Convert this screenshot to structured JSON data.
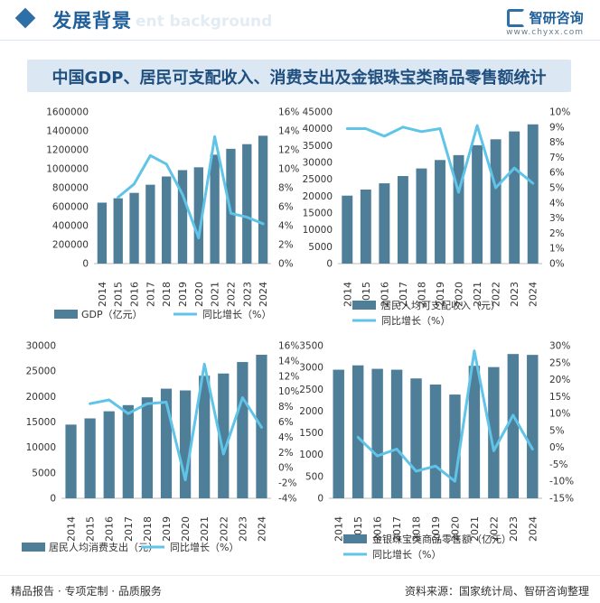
{
  "header": {
    "title": "发展背景",
    "ghost_text": "ent background",
    "logo_name": "智研咨询",
    "logo_url": "www.chyxx.com"
  },
  "main_title": "中国GDP、居民可支配收入、消费支出及金银珠宝类商品零售额统计",
  "footer": {
    "left": "精品报告 · 专项定制 · 品质服务",
    "right": "资料来源：国家统计局、智研咨询整理"
  },
  "colors": {
    "bar": "#4f7f98",
    "line": "#5fc4e8",
    "accent": "#1f5f9a"
  },
  "chart_data": [
    {
      "type": "bar",
      "categories": [
        "2014",
        "2015",
        "2016",
        "2017",
        "2018",
        "2019",
        "2020",
        "2021",
        "2022",
        "2023",
        "2024"
      ],
      "series": [
        {
          "name": "GDP（亿元）",
          "kind": "bar",
          "axis": "left",
          "values": [
            643000,
            689000,
            746000,
            832000,
            919000,
            986000,
            1016000,
            1149000,
            1211000,
            1260000,
            1349000
          ]
        },
        {
          "name": "同比增长（%）",
          "kind": "line",
          "axis": "right",
          "start_index": 1,
          "values": [
            null,
            7.0,
            8.4,
            11.4,
            10.5,
            7.3,
            2.7,
            13.4,
            5.3,
            4.9,
            4.2
          ]
        }
      ],
      "yticks_left": [
        "0",
        "200000",
        "400000",
        "600000",
        "800000",
        "1000000",
        "1200000",
        "1400000",
        "1600000"
      ],
      "yticks_right": [
        "0%",
        "2%",
        "4%",
        "6%",
        "8%",
        "10%",
        "12%",
        "14%",
        "16%"
      ],
      "ylim_left": [
        0,
        1600000
      ],
      "ylim_right": [
        0,
        16
      ]
    },
    {
      "type": "bar",
      "categories": [
        "2014",
        "2015",
        "2016",
        "2017",
        "2018",
        "2019",
        "2020",
        "2021",
        "2022",
        "2023",
        "2024"
      ],
      "series": [
        {
          "name": "居民人均可支配收入（元）",
          "kind": "bar",
          "axis": "left",
          "values": [
            20167,
            21966,
            23821,
            25974,
            28228,
            30733,
            32189,
            35128,
            36883,
            39218,
            41314
          ]
        },
        {
          "name": "同比增长（%）",
          "kind": "line",
          "axis": "right",
          "start_index": 0,
          "values": [
            8.9,
            8.9,
            8.4,
            9.0,
            8.7,
            8.9,
            4.7,
            9.1,
            5.0,
            6.3,
            5.3
          ]
        }
      ],
      "yticks_left": [
        "0",
        "5000",
        "10000",
        "15000",
        "20000",
        "25000",
        "30000",
        "35000",
        "40000",
        "45000"
      ],
      "yticks_right": [
        "0%",
        "1%",
        "2%",
        "3%",
        "4%",
        "5%",
        "6%",
        "7%",
        "8%",
        "9%",
        "10%"
      ],
      "ylim_left": [
        0,
        45000
      ],
      "ylim_right": [
        0,
        10
      ]
    },
    {
      "type": "bar",
      "categories": [
        "2014",
        "2015",
        "2016",
        "2017",
        "2018",
        "2019",
        "2020",
        "2021",
        "2022",
        "2023",
        "2024"
      ],
      "series": [
        {
          "name": "居民人均消费支出（元）",
          "kind": "bar",
          "axis": "left",
          "values": [
            14491,
            15712,
            17111,
            18322,
            19853,
            21559,
            21210,
            24100,
            24538,
            26796,
            28227
          ]
        },
        {
          "name": "同比增长（%）",
          "kind": "line",
          "axis": "right",
          "start_index": 1,
          "values": [
            null,
            8.4,
            8.9,
            7.1,
            8.4,
            8.6,
            -1.6,
            13.6,
            1.8,
            9.2,
            5.3
          ]
        }
      ],
      "yticks_left": [
        "0",
        "5000",
        "10000",
        "15000",
        "20000",
        "25000",
        "30000"
      ],
      "yticks_right": [
        "-4%",
        "-2%",
        "0%",
        "2%",
        "4%",
        "6%",
        "8%",
        "10%",
        "12%",
        "14%",
        "16%"
      ],
      "ylim_left": [
        0,
        30000
      ],
      "ylim_right": [
        -4,
        16
      ]
    },
    {
      "type": "bar",
      "categories": [
        "2014",
        "2015",
        "2016",
        "2017",
        "2018",
        "2019",
        "2020",
        "2021",
        "2022",
        "2023",
        "2024"
      ],
      "series": [
        {
          "name": "金银珠宝类商品零售额（亿元）",
          "kind": "bar",
          "axis": "left",
          "values": [
            2950,
            3050,
            2970,
            2950,
            2750,
            2610,
            2380,
            3040,
            3010,
            3310,
            3290
          ]
        },
        {
          "name": "同比增长（%）",
          "kind": "line",
          "axis": "right",
          "start_index": 1,
          "values": [
            null,
            3.0,
            -2.5,
            -0.5,
            -7.0,
            -5.5,
            -10.0,
            28.5,
            -1.0,
            9.5,
            -0.5
          ]
        }
      ],
      "yticks_left": [
        "0",
        "500",
        "1000",
        "1500",
        "2000",
        "2500",
        "3000",
        "3500"
      ],
      "yticks_right": [
        "-15%",
        "-10%",
        "-5%",
        "0%",
        "5%",
        "10%",
        "15%",
        "20%",
        "25%",
        "30%"
      ],
      "ylim_left": [
        0,
        3500
      ],
      "ylim_right": [
        -15,
        30
      ]
    }
  ]
}
